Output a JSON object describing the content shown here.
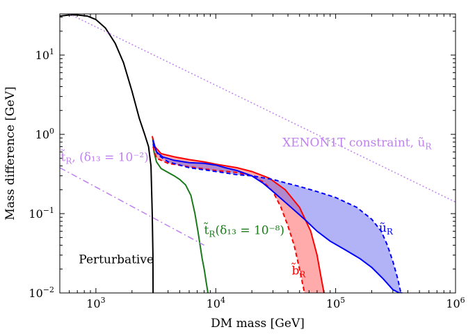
{
  "chart_data": {
    "type": "line",
    "title": "",
    "xlabel": "DM mass [GeV]",
    "ylabel": "Mass difference [GeV]",
    "xscale": "log",
    "yscale": "log",
    "xlim": [
      500,
      1000000
    ],
    "ylim": [
      0.01,
      33
    ],
    "grid": false,
    "legend": "none",
    "xticks": [
      {
        "value": 1000,
        "base": "10",
        "exp": "3"
      },
      {
        "value": 10000,
        "base": "10",
        "exp": "4"
      },
      {
        "value": 100000,
        "base": "10",
        "exp": "5"
      },
      {
        "value": 1000000,
        "base": "10",
        "exp": "6"
      }
    ],
    "yticks": [
      {
        "value": 0.01,
        "base": "10",
        "exp": "−2"
      },
      {
        "value": 0.1,
        "base": "10",
        "exp": "−1"
      },
      {
        "value": 1,
        "base": "10",
        "exp": "0"
      },
      {
        "value": 10,
        "base": "10",
        "exp": "1"
      }
    ],
    "series": [
      {
        "color": "#000000",
        "style": "solid",
        "x": [
          500,
          600,
          700,
          850,
          1000,
          1200,
          1450,
          1700,
          2000,
          2300,
          2550,
          2750,
          2880,
          2950,
          2990,
          3000
        ],
        "y": [
          31,
          32,
          32,
          31,
          28,
          22,
          14,
          8,
          3.5,
          1.6,
          1.0,
          0.7,
          0.4,
          0.1,
          0.03,
          0.01
        ]
      },
      {
        "color": "#1a7a1a",
        "style": "solid",
        "x": [
          2980,
          3050,
          3200,
          3500,
          4000,
          4500,
          5000,
          5600,
          6200,
          6700,
          7100,
          7400,
          7700,
          8000,
          8300,
          8600
        ],
        "y": [
          0.9,
          0.6,
          0.45,
          0.37,
          0.33,
          0.3,
          0.27,
          0.23,
          0.17,
          0.1,
          0.06,
          0.04,
          0.027,
          0.02,
          0.014,
          0.01
        ]
      },
      {
        "color": "#ff0000",
        "style": "solid",
        "x": [
          2950,
          3100,
          3500,
          4500,
          6000,
          8000,
          10000,
          15000,
          20000,
          28000,
          38000,
          50000,
          62000,
          70000,
          76000,
          80000
        ],
        "y": [
          0.95,
          0.7,
          0.57,
          0.52,
          0.48,
          0.45,
          0.42,
          0.38,
          0.34,
          0.28,
          0.2,
          0.12,
          0.06,
          0.03,
          0.015,
          0.01
        ]
      },
      {
        "color": "#ff0000",
        "style": "dashed",
        "x": [
          3000,
          3200,
          4000,
          6000,
          10000,
          15000,
          20000,
          25000,
          30000,
          35000,
          40000,
          45000,
          50000,
          53000,
          55000
        ],
        "y": [
          0.7,
          0.5,
          0.43,
          0.39,
          0.35,
          0.33,
          0.3,
          0.25,
          0.19,
          0.12,
          0.07,
          0.04,
          0.02,
          0.013,
          0.01
        ]
      },
      {
        "color": "#0000ff",
        "style": "solid",
        "x": [
          2990,
          3200,
          3600,
          4500,
          6000,
          8000,
          10000,
          12000,
          15000,
          20000,
          25000,
          30000,
          40000,
          55000,
          70000,
          90000,
          120000,
          160000,
          200000,
          250000,
          300000,
          340000,
          360000
        ],
        "y": [
          0.85,
          0.6,
          0.52,
          0.47,
          0.44,
          0.43,
          0.41,
          0.38,
          0.35,
          0.3,
          0.24,
          0.19,
          0.13,
          0.085,
          0.06,
          0.045,
          0.035,
          0.027,
          0.021,
          0.015,
          0.011,
          0.01,
          0.01
        ]
      },
      {
        "color": "#0000ff",
        "style": "dashed",
        "x": [
          3000,
          3300,
          4000,
          6000,
          10000,
          15000,
          20000,
          30000,
          40000,
          50000,
          70000,
          100000,
          150000,
          200000,
          240000,
          270000,
          300000,
          330000,
          350000,
          360000
        ],
        "y": [
          0.75,
          0.55,
          0.45,
          0.38,
          0.34,
          0.31,
          0.3,
          0.27,
          0.24,
          0.22,
          0.19,
          0.16,
          0.12,
          0.085,
          0.06,
          0.04,
          0.025,
          0.015,
          0.01,
          0.01
        ]
      },
      {
        "color": "#c080f0",
        "style": "dotted",
        "x": [
          600,
          1000000
        ],
        "y": [
          33,
          0.14
        ]
      },
      {
        "color": "#c080f0",
        "style": "dashdot",
        "x": [
          500,
          8000
        ],
        "y": [
          0.38,
          0.04
        ]
      }
    ],
    "bands": [
      {
        "color": "#ff6666",
        "opacity": 0.55,
        "upper": {
          "x": [
            3000,
            3500,
            4500,
            6000,
            8000,
            10000,
            15000,
            20000,
            28000,
            38000,
            50000,
            62000,
            70000,
            76000,
            80000
          ],
          "y": [
            0.7,
            0.57,
            0.52,
            0.48,
            0.45,
            0.42,
            0.38,
            0.34,
            0.28,
            0.2,
            0.12,
            0.06,
            0.03,
            0.015,
            0.01
          ]
        },
        "lower": {
          "x": [
            3000,
            3200,
            4000,
            6000,
            10000,
            15000,
            20000,
            25000,
            30000,
            35000,
            40000,
            45000,
            50000,
            53000,
            55000
          ],
          "y": [
            0.7,
            0.5,
            0.43,
            0.39,
            0.35,
            0.33,
            0.3,
            0.25,
            0.19,
            0.12,
            0.07,
            0.04,
            0.02,
            0.013,
            0.01
          ]
        }
      },
      {
        "color": "#6666ee",
        "opacity": 0.5,
        "upper": {
          "x": [
            3000,
            3200,
            3600,
            4500,
            6000,
            8000,
            10000,
            12000,
            15000,
            20000,
            25000,
            30000,
            40000,
            55000,
            70000,
            90000,
            120000,
            160000,
            200000,
            250000,
            300000,
            340000,
            360000
          ],
          "y": [
            0.8,
            0.6,
            0.52,
            0.47,
            0.44,
            0.43,
            0.41,
            0.38,
            0.35,
            0.3,
            0.24,
            0.19,
            0.13,
            0.085,
            0.06,
            0.045,
            0.035,
            0.027,
            0.021,
            0.015,
            0.011,
            0.01,
            0.01
          ]
        },
        "lower": {
          "x": [
            3000,
            3300,
            4000,
            6000,
            10000,
            15000,
            20000,
            30000,
            40000,
            50000,
            70000,
            100000,
            150000,
            200000,
            240000,
            270000,
            300000,
            330000,
            350000,
            360000
          ],
          "y": [
            0.75,
            0.55,
            0.45,
            0.38,
            0.34,
            0.31,
            0.3,
            0.27,
            0.24,
            0.22,
            0.19,
            0.16,
            0.12,
            0.085,
            0.06,
            0.04,
            0.025,
            0.015,
            0.01,
            0.01
          ]
        }
      }
    ],
    "annotations": [
      {
        "text": "XENON1T constraint, ũ",
        "sub": "R",
        "color": "#c080f0",
        "x": 36000,
        "y": 0.7
      },
      {
        "text": "t̃",
        "sub": "R",
        "tail": ", (δ₁₃ = 10⁻²)",
        "color": "#c080f0",
        "x": 510,
        "y": 0.46
      },
      {
        "text": "t̃",
        "sub": "R",
        "tail": "(δ₁₃ = 10⁻⁸)",
        "color": "#1a7a1a",
        "x": 8000,
        "y": 0.055
      },
      {
        "text": "b̃",
        "sub": "R",
        "tail": "",
        "color": "#ff0000",
        "x": 43000,
        "y": 0.017
      },
      {
        "text": "ũ",
        "sub": "R",
        "tail": "",
        "color": "#0000ff",
        "x": 230000,
        "y": 0.059
      },
      {
        "text": "Perturbative",
        "sub": "",
        "tail": "",
        "color": "#000000",
        "x": 720,
        "y": 0.0235
      }
    ]
  }
}
